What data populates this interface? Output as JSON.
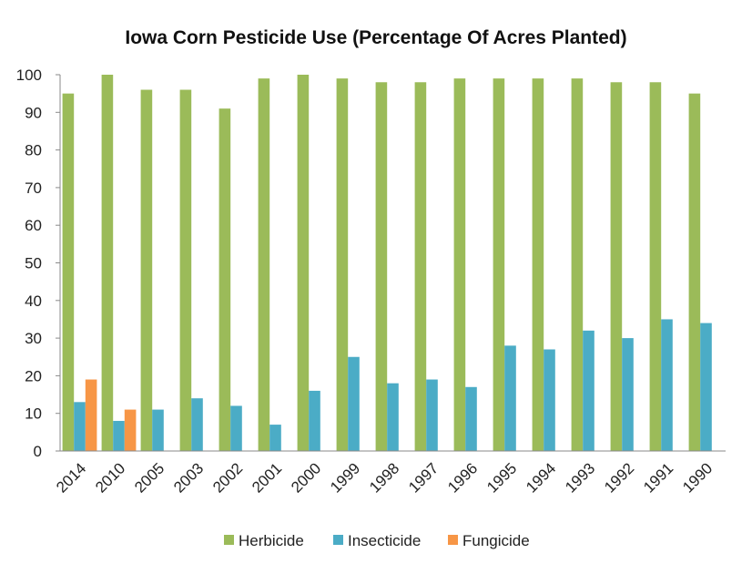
{
  "chart_data": {
    "type": "bar",
    "title": "Iowa Corn Pesticide Use (Percentage Of Acres Planted)",
    "xlabel": "",
    "ylabel": "",
    "ylim": [
      0,
      100
    ],
    "yticks": [
      0,
      10,
      20,
      30,
      40,
      50,
      60,
      70,
      80,
      90,
      100
    ],
    "grid": false,
    "legend": "bottom",
    "categories": [
      "2014",
      "2010",
      "2005",
      "2003",
      "2002",
      "2001",
      "2000",
      "1999",
      "1998",
      "1997",
      "1996",
      "1995",
      "1994",
      "1993",
      "1992",
      "1991",
      "1990"
    ],
    "series": [
      {
        "name": "Herbicide",
        "color": "#9bbb59",
        "values": [
          95,
          100,
          96,
          96,
          91,
          99,
          100,
          99,
          98,
          98,
          99,
          99,
          99,
          99,
          98,
          98,
          95
        ]
      },
      {
        "name": "Insecticide",
        "color": "#4bacc6",
        "values": [
          13,
          8,
          11,
          14,
          12,
          7,
          16,
          25,
          18,
          19,
          17,
          28,
          27,
          32,
          30,
          35,
          34
        ]
      },
      {
        "name": "Fungicide",
        "color": "#f79646",
        "values": [
          19,
          11,
          null,
          null,
          null,
          null,
          null,
          null,
          null,
          null,
          null,
          null,
          null,
          null,
          null,
          null,
          null
        ]
      }
    ]
  }
}
